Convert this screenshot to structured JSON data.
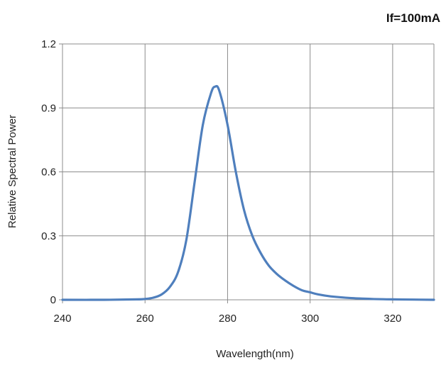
{
  "chart_data": {
    "type": "line",
    "title": "",
    "annotation": "If=100mA",
    "xlabel": "Wavelength(nm)",
    "ylabel": "Relative Spectral Power",
    "xlim": [
      240,
      330
    ],
    "ylim": [
      0,
      1.2
    ],
    "xticks": [
      240,
      260,
      280,
      300,
      320
    ],
    "xtick_labels": [
      "240",
      "260",
      "280",
      "300",
      "320"
    ],
    "yticks": [
      0,
      0.3,
      0.6,
      0.9,
      1.2
    ],
    "ytick_labels": [
      "0",
      "0.3",
      "0.6",
      "0.9",
      "1.2"
    ],
    "grid": true,
    "line_color": "#4f7fbd",
    "grid_color": "#8c8c8c",
    "series": [
      {
        "x": [
          240,
          250,
          258,
          260,
          262,
          264,
          266,
          268,
          270,
          272,
          274,
          276,
          277,
          278,
          280,
          282,
          284,
          286,
          288,
          290,
          292,
          294,
          296,
          298,
          300,
          302,
          305,
          310,
          315,
          320,
          325,
          330
        ],
        "y": [
          0.0,
          0.0,
          0.002,
          0.004,
          0.01,
          0.025,
          0.06,
          0.13,
          0.28,
          0.55,
          0.82,
          0.97,
          1.0,
          0.98,
          0.82,
          0.6,
          0.42,
          0.3,
          0.22,
          0.16,
          0.12,
          0.09,
          0.065,
          0.045,
          0.035,
          0.025,
          0.016,
          0.008,
          0.004,
          0.002,
          0.001,
          0.0
        ]
      }
    ]
  }
}
